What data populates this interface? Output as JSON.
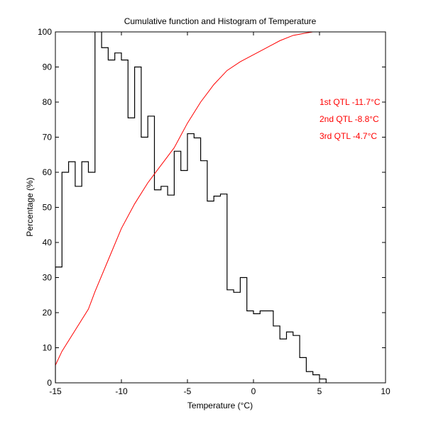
{
  "chart_data": {
    "type": "bar",
    "title": "Cumulative function and Histogram of Temperature",
    "xlabel": "Temperature (°C)",
    "ylabel": "Percentage (%)",
    "xlim": [
      -15,
      10
    ],
    "ylim": [
      0,
      100
    ],
    "xticks": [
      -15,
      -10,
      -5,
      0,
      5,
      10
    ],
    "yticks": [
      0,
      10,
      20,
      30,
      40,
      50,
      60,
      70,
      80,
      90,
      100
    ],
    "grid": false,
    "series": [
      {
        "name": "Histogram",
        "kind": "stairs",
        "color": "#000000",
        "bin_width": 0.5,
        "bin_starts": [
          -15,
          -14.5,
          -14,
          -13.5,
          -13,
          -12.5,
          -12,
          -11.5,
          -11,
          -10.5,
          -10,
          -9.5,
          -9,
          -8.5,
          -8,
          -7.5,
          -7,
          -6.5,
          -6,
          -5.5,
          -5,
          -4.5,
          -4,
          -3.5,
          -3,
          -2.5,
          -2,
          -1.5,
          -1,
          -0.5,
          0,
          0.5,
          1,
          1.5,
          2,
          2.5,
          3,
          3.5,
          4,
          4.5,
          5
        ],
        "values": [
          33,
          60,
          63,
          56,
          63,
          60,
          105,
          95.5,
          92,
          94,
          92,
          75.5,
          90,
          70,
          76,
          55,
          56,
          53.5,
          66,
          60.5,
          71,
          69.8,
          63.3,
          51.8,
          53.2,
          53.8,
          26.5,
          25.8,
          30,
          20.5,
          19.7,
          20.5,
          20.5,
          16.2,
          12.5,
          14.5,
          13.5,
          7.2,
          3.2,
          2.3,
          1.1
        ]
      },
      {
        "name": "Cumulative function",
        "kind": "line",
        "color": "#ff0000",
        "x": [
          -15,
          -14.5,
          -13.5,
          -12.5,
          -12,
          -11,
          -10,
          -9,
          -8,
          -7,
          -6,
          -5,
          -4,
          -3,
          -2,
          -1,
          0,
          1,
          2,
          3,
          4,
          4.5
        ],
        "y": [
          5,
          9,
          15,
          21,
          26,
          35,
          44,
          51,
          57,
          62,
          67,
          74,
          80,
          85,
          89,
          91.5,
          93.5,
          95.5,
          97.5,
          99,
          99.7,
          100
        ]
      }
    ],
    "annotations": [
      "1st QTL -11.7°C",
      "2nd QTL -8.8°C",
      "3rd QTL -4.7°C"
    ],
    "annotation_color": "#ff0000"
  }
}
